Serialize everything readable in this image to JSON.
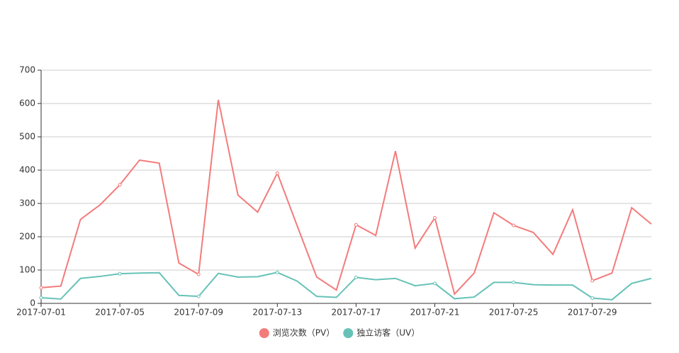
{
  "chart_data": {
    "type": "line",
    "categories": [
      "2017-07-01",
      null,
      null,
      null,
      "2017-07-05",
      null,
      null,
      null,
      "2017-07-09",
      null,
      null,
      null,
      "2017-07-13",
      null,
      null,
      null,
      "2017-07-17",
      null,
      null,
      null,
      "2017-07-21",
      null,
      null,
      null,
      "2017-07-25",
      null,
      null,
      null,
      "2017-07-29",
      null,
      null,
      null
    ],
    "series": [
      {
        "name": "浏览次数（PV）",
        "color": "#f47b7b",
        "values": [
          47,
          52,
          252,
          296,
          356,
          430,
          421,
          121,
          87,
          611,
          325,
          274,
          391,
          234,
          79,
          40,
          236,
          204,
          457,
          166,
          257,
          28,
          91,
          272,
          234,
          213,
          147,
          281,
          68,
          91,
          287,
          238
        ]
      },
      {
        "name": "独立访客（UV）",
        "color": "#66c2b7",
        "values": [
          17,
          13,
          75,
          81,
          89,
          91,
          92,
          24,
          21,
          90,
          79,
          80,
          93,
          67,
          21,
          18,
          78,
          71,
          75,
          53,
          60,
          14,
          19,
          63,
          63,
          56,
          55,
          55,
          16,
          11,
          60,
          75
        ]
      }
    ],
    "ylim": [
      0,
      700
    ],
    "yticks": [
      0,
      100,
      200,
      300,
      400,
      500,
      600,
      700
    ],
    "grid": true,
    "legend": "bottom"
  }
}
